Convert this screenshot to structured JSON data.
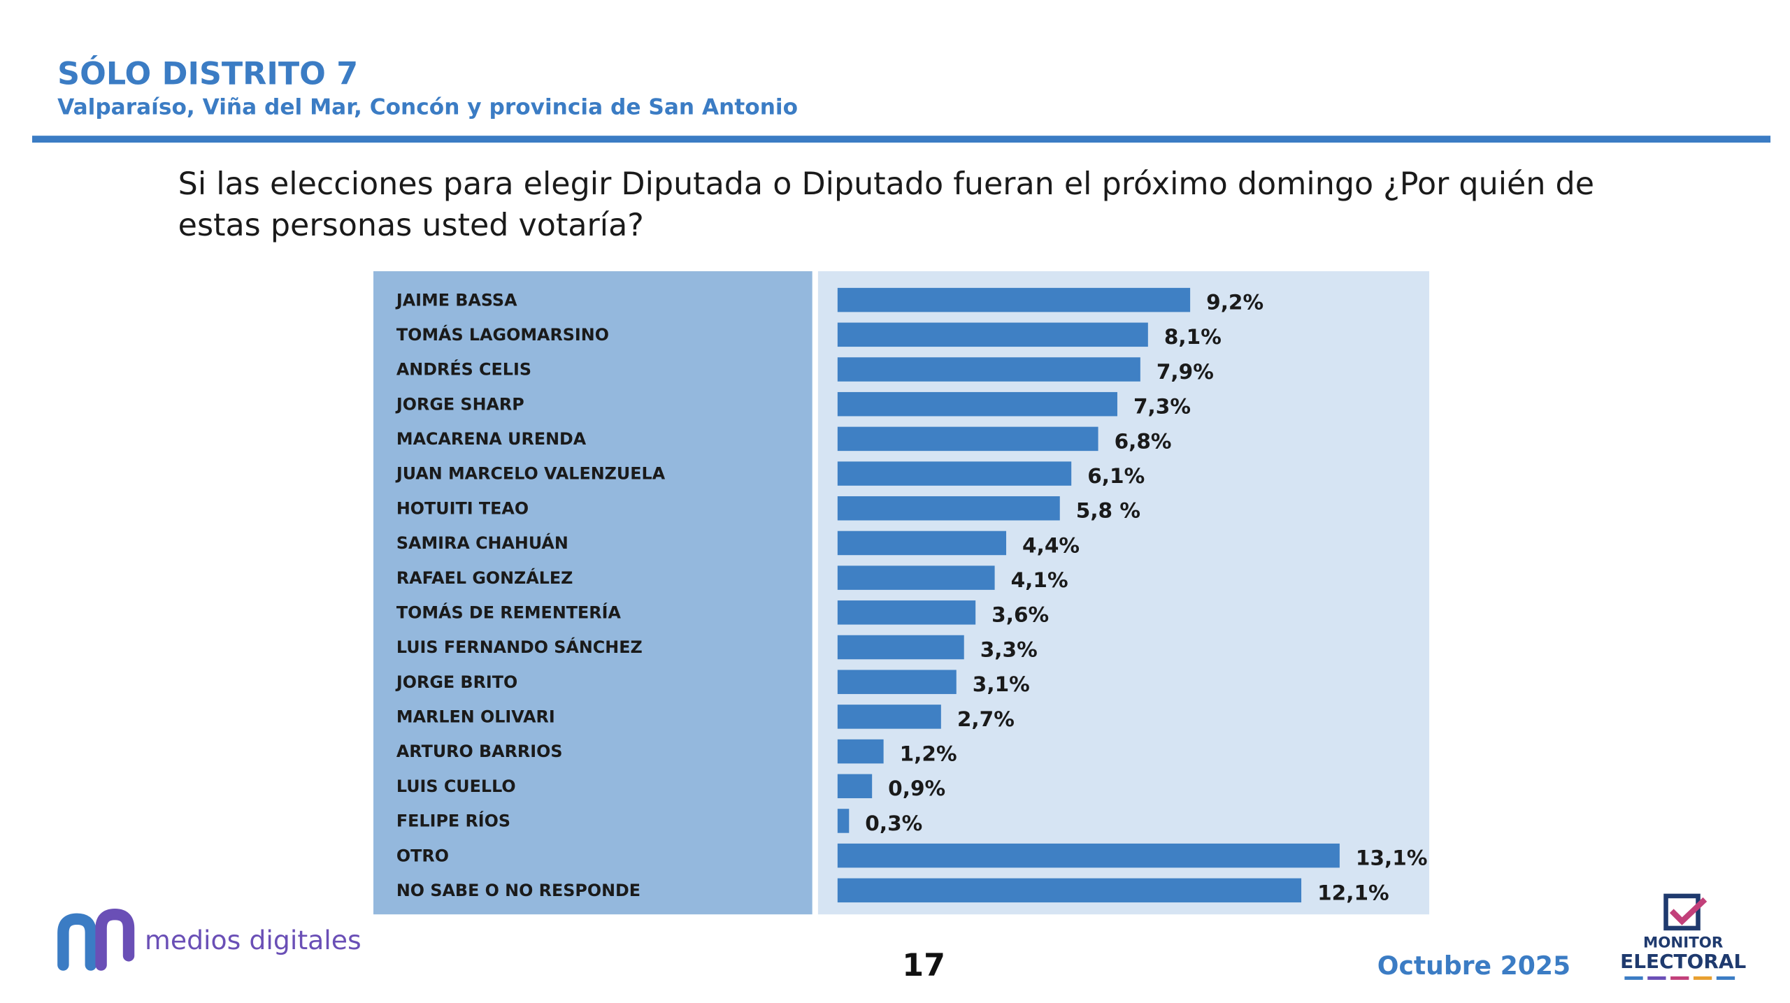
{
  "header": {
    "title": "SÓLO DISTRITO 7",
    "subtitle": "Valparaíso, Viña del Mar, Concón y provincia de San Antonio"
  },
  "chart_data": {
    "type": "bar",
    "orientation": "horizontal",
    "title": "Si las elecciones para elegir Diputada o Diputado fueran el próximo domingo ¿Por quién de estas personas usted votaría?",
    "categories": [
      "JAIME BASSA",
      "TOMÁS LAGOMARSINO",
      "ANDRÉS CELIS",
      "JORGE SHARP",
      "MACARENA URENDA",
      "JUAN MARCELO VALENZUELA",
      "HOTUITI TEAO",
      "SAMIRA CHAHUÁN",
      "RAFAEL GONZÁLEZ",
      "TOMÁS DE REMENTERÍA",
      "LUIS FERNANDO SÁNCHEZ",
      "JORGE BRITO",
      "MARLEN OLIVARI",
      "ARTURO BARRIOS",
      "LUIS CUELLO",
      "FELIPE RÍOS",
      "OTRO",
      "NO SABE O NO RESPONDE"
    ],
    "values": [
      9.2,
      8.1,
      7.9,
      7.3,
      6.8,
      6.1,
      5.8,
      4.4,
      4.1,
      3.6,
      3.3,
      3.1,
      2.7,
      1.2,
      0.9,
      0.3,
      13.1,
      12.1
    ],
    "value_labels": [
      "9,2%",
      "8,1%",
      "7,9%",
      "7,3%",
      "6,8%",
      "6,1%",
      "5,8 %",
      "4,4%",
      "4,1%",
      "3,6%",
      "3,3%",
      "3,1%",
      "2,7%",
      "1,2%",
      "0,9%",
      "0,3%",
      "13,1%",
      "12,1%"
    ],
    "color": "#3f80c4"
  },
  "footer": {
    "brand": "medios digitales",
    "page": "17",
    "date": "Octubre 2025",
    "logo_top": "MONITOR",
    "logo_bottom": "ELECTORAL"
  }
}
